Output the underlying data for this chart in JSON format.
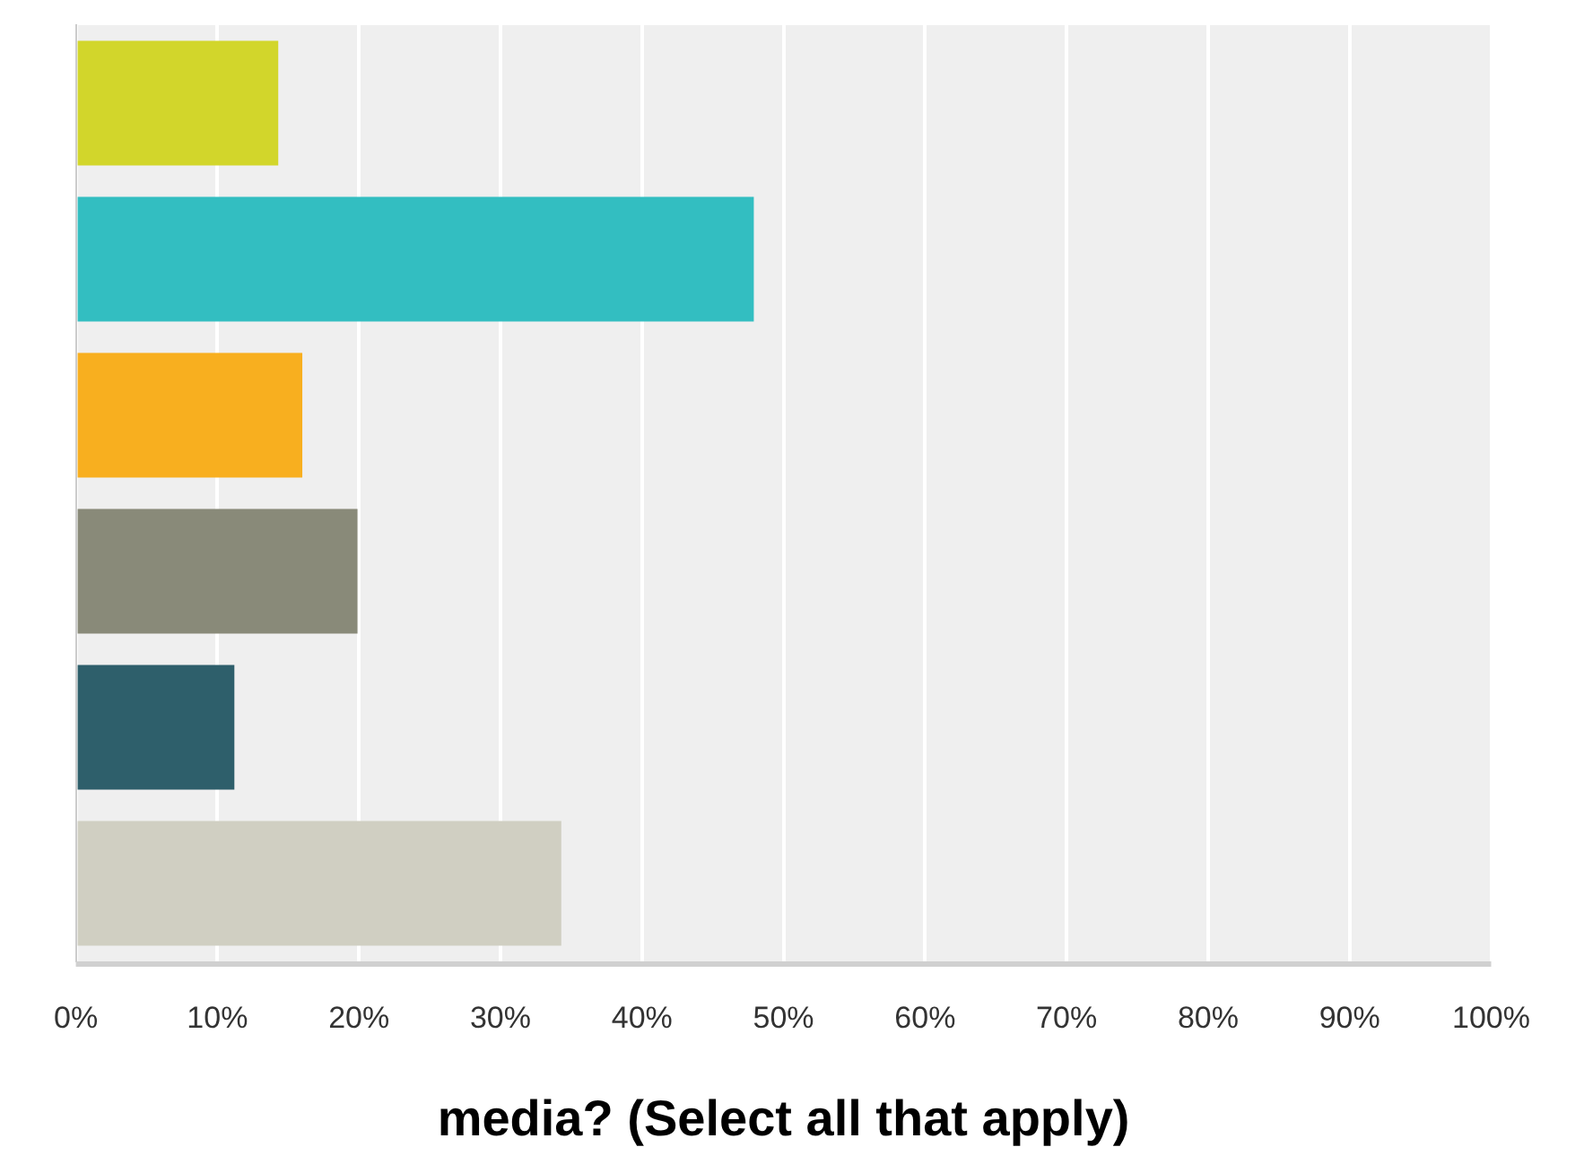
{
  "chart_data": {
    "type": "bar",
    "orientation": "horizontal",
    "xlabel": "media? (Select all that apply)",
    "categories": [
      null,
      null,
      null,
      null,
      null,
      null
    ],
    "values": [
      14.3,
      47.9,
      16.0,
      19.9,
      11.2,
      34.3
    ],
    "colors": [
      "#d2d62b",
      "#33bec1",
      "#f8af1f",
      "#898a79",
      "#2e5f6b",
      "#d0cfc2"
    ],
    "xlim": [
      0,
      100
    ],
    "xticks": [
      {
        "value": 0,
        "label": "0%"
      },
      {
        "value": 10,
        "label": "10%"
      },
      {
        "value": 20,
        "label": "20%"
      },
      {
        "value": 30,
        "label": "30%"
      },
      {
        "value": 40,
        "label": "40%"
      },
      {
        "value": 50,
        "label": "50%"
      },
      {
        "value": 60,
        "label": "60%"
      },
      {
        "value": 70,
        "label": "70%"
      },
      {
        "value": 80,
        "label": "80%"
      },
      {
        "value": 90,
        "label": "90%"
      },
      {
        "value": 100,
        "label": "100%"
      }
    ],
    "grid": "x",
    "legend": false
  }
}
